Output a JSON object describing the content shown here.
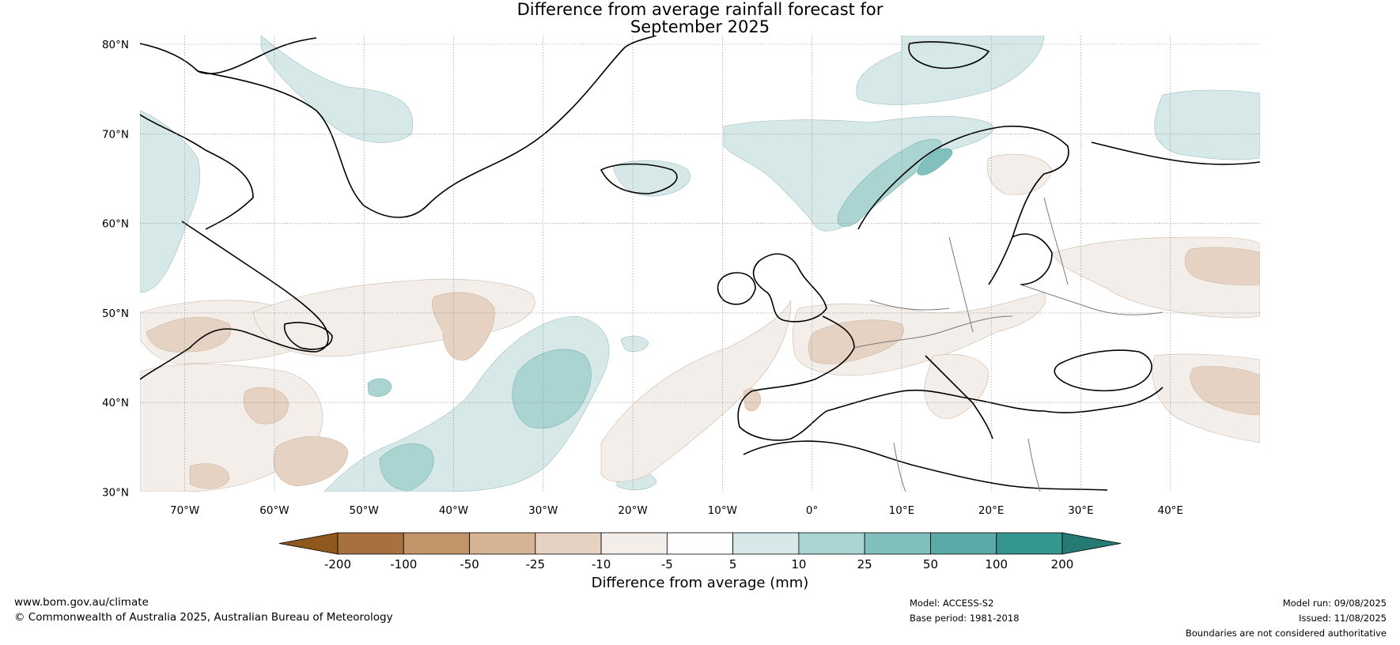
{
  "title": {
    "line1": "Difference from average rainfall forecast for",
    "line2": "September 2025"
  },
  "map": {
    "lat_labels": [
      "80°N",
      "70°N",
      "60°N",
      "50°N",
      "40°N",
      "30°N"
    ],
    "lon_labels": [
      "70°W",
      "60°W",
      "50°W",
      "40°W",
      "30°W",
      "20°W",
      "10°W",
      "0°",
      "10°E",
      "20°E",
      "30°E",
      "40°E"
    ],
    "lat_range": [
      30,
      80
    ],
    "lon_range": [
      -75,
      50
    ]
  },
  "legend": {
    "title": "Difference from average (mm)",
    "tick_labels": [
      "-200",
      "-100",
      "-50",
      "-25",
      "-10",
      "-5",
      "5",
      "10",
      "25",
      "50",
      "100",
      "200"
    ],
    "colors": [
      "#8f581d",
      "#a8703e",
      "#c29469",
      "#d5b395",
      "#e5d2c2",
      "#f3eee9",
      "#ffffff",
      "#d6e9e8",
      "#a9d4d2",
      "#82c0bd",
      "#5aaaa7",
      "#35958f",
      "#257a74"
    ]
  },
  "footer": {
    "website": "www.bom.gov.au/climate",
    "copyright": "© Commonwealth of Australia 2025, Australian Bureau of Meteorology",
    "model": "Model: ACCESS-S2",
    "base_period": "Base period: 1981-2018",
    "model_run": "Model run: 09/08/2025",
    "issued": "Issued: 11/08/2025",
    "disclaimer": "Boundaries are not considered authoritative"
  }
}
